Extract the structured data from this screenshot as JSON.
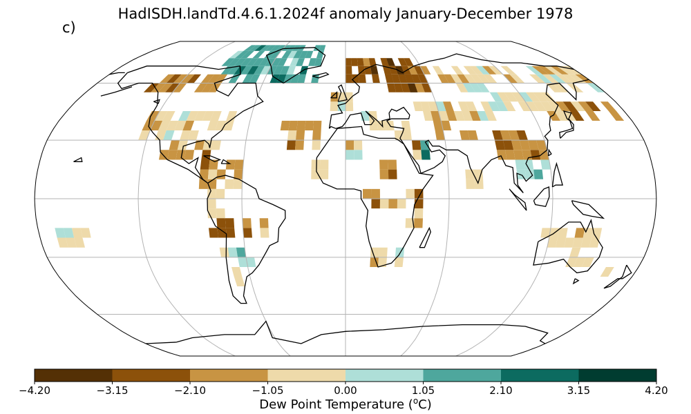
{
  "title": "HadISDH.landTd.4.6.1.2024f anomaly January-December 1978",
  "panel_label": "c)",
  "colorbar": {
    "label": "Dew Point Temperature (ºC)",
    "label_prefix": "Dew Point Temperature (",
    "label_sup": "o",
    "label_suffix": "C)",
    "ticks": [
      "−4.20",
      "−3.15",
      "−2.10",
      "−1.05",
      "0.00",
      "1.05",
      "2.10",
      "3.15",
      "4.20"
    ],
    "colors": [
      "#543005",
      "#8c510a",
      "#c89443",
      "#eedaaa",
      "#aedfd8",
      "#4ea79d",
      "#0c6b60",
      "#003c30"
    ]
  },
  "chart_data": {
    "type": "heatmap",
    "projection": "robinson",
    "variable": "dew point temperature anomaly",
    "units": "ºC",
    "color_range": [
      -4.2,
      4.2
    ],
    "bin_edges": [
      -4.2,
      -3.15,
      -2.1,
      -1.05,
      0.0,
      1.05,
      2.1,
      3.15,
      4.2
    ],
    "gridlines": {
      "lat": [
        -60,
        -30,
        0,
        30,
        60
      ],
      "lon": [
        -120,
        -60,
        0,
        60,
        120
      ]
    },
    "grid": true
  }
}
